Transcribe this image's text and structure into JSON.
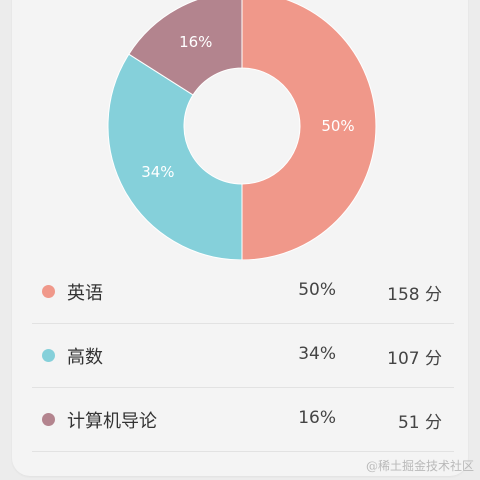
{
  "chart_data": {
    "type": "pie",
    "donut": true,
    "series": [
      {
        "name": "英语",
        "percent_label": "50%",
        "value_label": "158 分",
        "value": 158,
        "percent": 50,
        "color": "#f0988a"
      },
      {
        "name": "高数",
        "percent_label": "34%",
        "value_label": "107 分",
        "value": 107,
        "percent": 34,
        "color": "#85d0da"
      },
      {
        "name": "计算机导论",
        "percent_label": "16%",
        "value_label": "51 分",
        "value": 51,
        "percent": 16,
        "color": "#b3848e"
      }
    ]
  },
  "legend": {
    "items": [
      {
        "name": "英语",
        "percent": "50%",
        "value": "158 分",
        "color": "#f0988a"
      },
      {
        "name": "高数",
        "percent": "34%",
        "value": "107 分",
        "color": "#85d0da"
      },
      {
        "name": "计算机导论",
        "percent": "16%",
        "value": "51 分",
        "color": "#b3848e"
      }
    ]
  },
  "watermark": "@稀土掘金技术社区"
}
